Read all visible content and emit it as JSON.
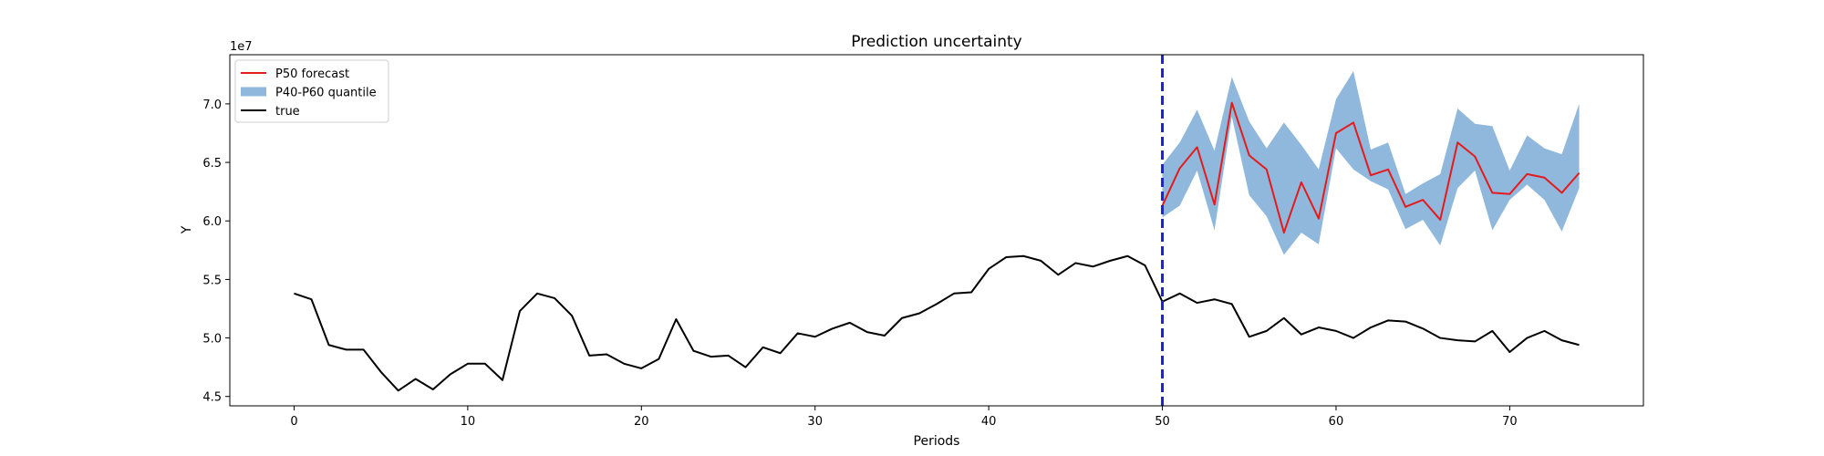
{
  "chart_data": {
    "type": "line",
    "title": "Prediction uncertainty",
    "xlabel": "Periods",
    "ylabel": "Y",
    "y_offset_label": "1e7",
    "xlim": [
      -3.7,
      77.7
    ],
    "ylim": [
      4.42,
      7.42
    ],
    "x_ticks": [
      0,
      10,
      20,
      30,
      40,
      50,
      60,
      70
    ],
    "y_ticks": [
      4.5,
      5.0,
      5.5,
      6.0,
      6.5,
      7.0
    ],
    "y_tick_labels": [
      "4.5",
      "5.0",
      "5.5",
      "6.0",
      "6.5",
      "7.0"
    ],
    "grid": false,
    "legend_position": "upper-left",
    "legend": [
      {
        "label": "P50 forecast",
        "kind": "line",
        "color": "#e41a1c"
      },
      {
        "label": "P40-P60 quantile",
        "kind": "patch",
        "color": "#8fb8dc"
      },
      {
        "label": "true",
        "kind": "line",
        "color": "#000000"
      }
    ],
    "vline": {
      "x": 50,
      "color": "#1f1fd6",
      "style": "dashed"
    },
    "series": [
      {
        "name": "true",
        "color": "#000000",
        "x": [
          0,
          1,
          2,
          3,
          4,
          5,
          6,
          7,
          8,
          9,
          10,
          11,
          12,
          13,
          14,
          15,
          16,
          17,
          18,
          19,
          20,
          21,
          22,
          23,
          24,
          25,
          26,
          27,
          28,
          29,
          30,
          31,
          32,
          33,
          34,
          35,
          36,
          37,
          38,
          39,
          40,
          41,
          42,
          43,
          44,
          45,
          46,
          47,
          48,
          49,
          50,
          51,
          52,
          53,
          54,
          55,
          56,
          57,
          58,
          59,
          60,
          61,
          62,
          63,
          64,
          65,
          66,
          67,
          68,
          69,
          70,
          71,
          72,
          73,
          74
        ],
        "values": [
          5.38,
          5.33,
          4.94,
          4.9,
          4.9,
          4.71,
          4.55,
          4.65,
          4.56,
          4.69,
          4.78,
          4.78,
          4.64,
          5.23,
          5.38,
          5.34,
          5.19,
          4.85,
          4.86,
          4.78,
          4.74,
          4.82,
          5.16,
          4.89,
          4.84,
          4.85,
          4.75,
          4.92,
          4.87,
          5.04,
          5.01,
          5.08,
          5.13,
          5.05,
          5.02,
          5.17,
          5.21,
          5.29,
          5.38,
          5.39,
          5.59,
          5.69,
          5.7,
          5.66,
          5.54,
          5.64,
          5.61,
          5.66,
          5.7,
          5.62,
          5.31,
          5.38,
          5.3,
          5.33,
          5.29,
          5.01,
          5.06,
          5.17,
          5.03,
          5.09,
          5.06,
          5.0,
          5.09,
          5.15,
          5.14,
          5.08,
          5.0,
          4.98,
          4.97,
          5.06,
          4.88,
          5.0,
          5.06,
          4.98,
          4.94
        ]
      },
      {
        "name": "P50 forecast",
        "color": "#e41a1c",
        "x": [
          50,
          51,
          52,
          53,
          54,
          55,
          56,
          57,
          58,
          59,
          60,
          61,
          62,
          63,
          64,
          65,
          66,
          67,
          68,
          69,
          70,
          71,
          72,
          73,
          74
        ],
        "values": [
          6.13,
          6.45,
          6.63,
          6.14,
          7.01,
          6.56,
          6.44,
          5.9,
          6.33,
          6.02,
          6.75,
          6.84,
          6.39,
          6.44,
          6.12,
          6.18,
          6.01,
          6.67,
          6.55,
          6.24,
          6.23,
          6.4,
          6.37,
          6.24,
          6.41
        ]
      }
    ],
    "band": {
      "name": "P40-P60 quantile",
      "color": "#8fb8dc",
      "x": [
        50,
        51,
        52,
        53,
        54,
        55,
        56,
        57,
        58,
        59,
        60,
        61,
        62,
        63,
        64,
        65,
        66,
        67,
        68,
        69,
        70,
        71,
        72,
        73,
        74
      ],
      "lower": [
        6.03,
        6.13,
        6.43,
        5.92,
        6.89,
        6.22,
        6.04,
        5.71,
        5.9,
        5.8,
        6.62,
        6.44,
        6.34,
        6.27,
        5.93,
        6.01,
        5.79,
        6.28,
        6.43,
        5.92,
        6.18,
        6.31,
        6.18,
        5.91,
        6.28
      ],
      "upper": [
        6.48,
        6.67,
        6.95,
        6.6,
        7.23,
        6.85,
        6.62,
        6.84,
        6.65,
        6.44,
        7.04,
        7.28,
        6.61,
        6.67,
        6.23,
        6.32,
        6.4,
        6.96,
        6.83,
        6.81,
        6.43,
        6.73,
        6.62,
        6.57,
        7.0
      ]
    }
  }
}
